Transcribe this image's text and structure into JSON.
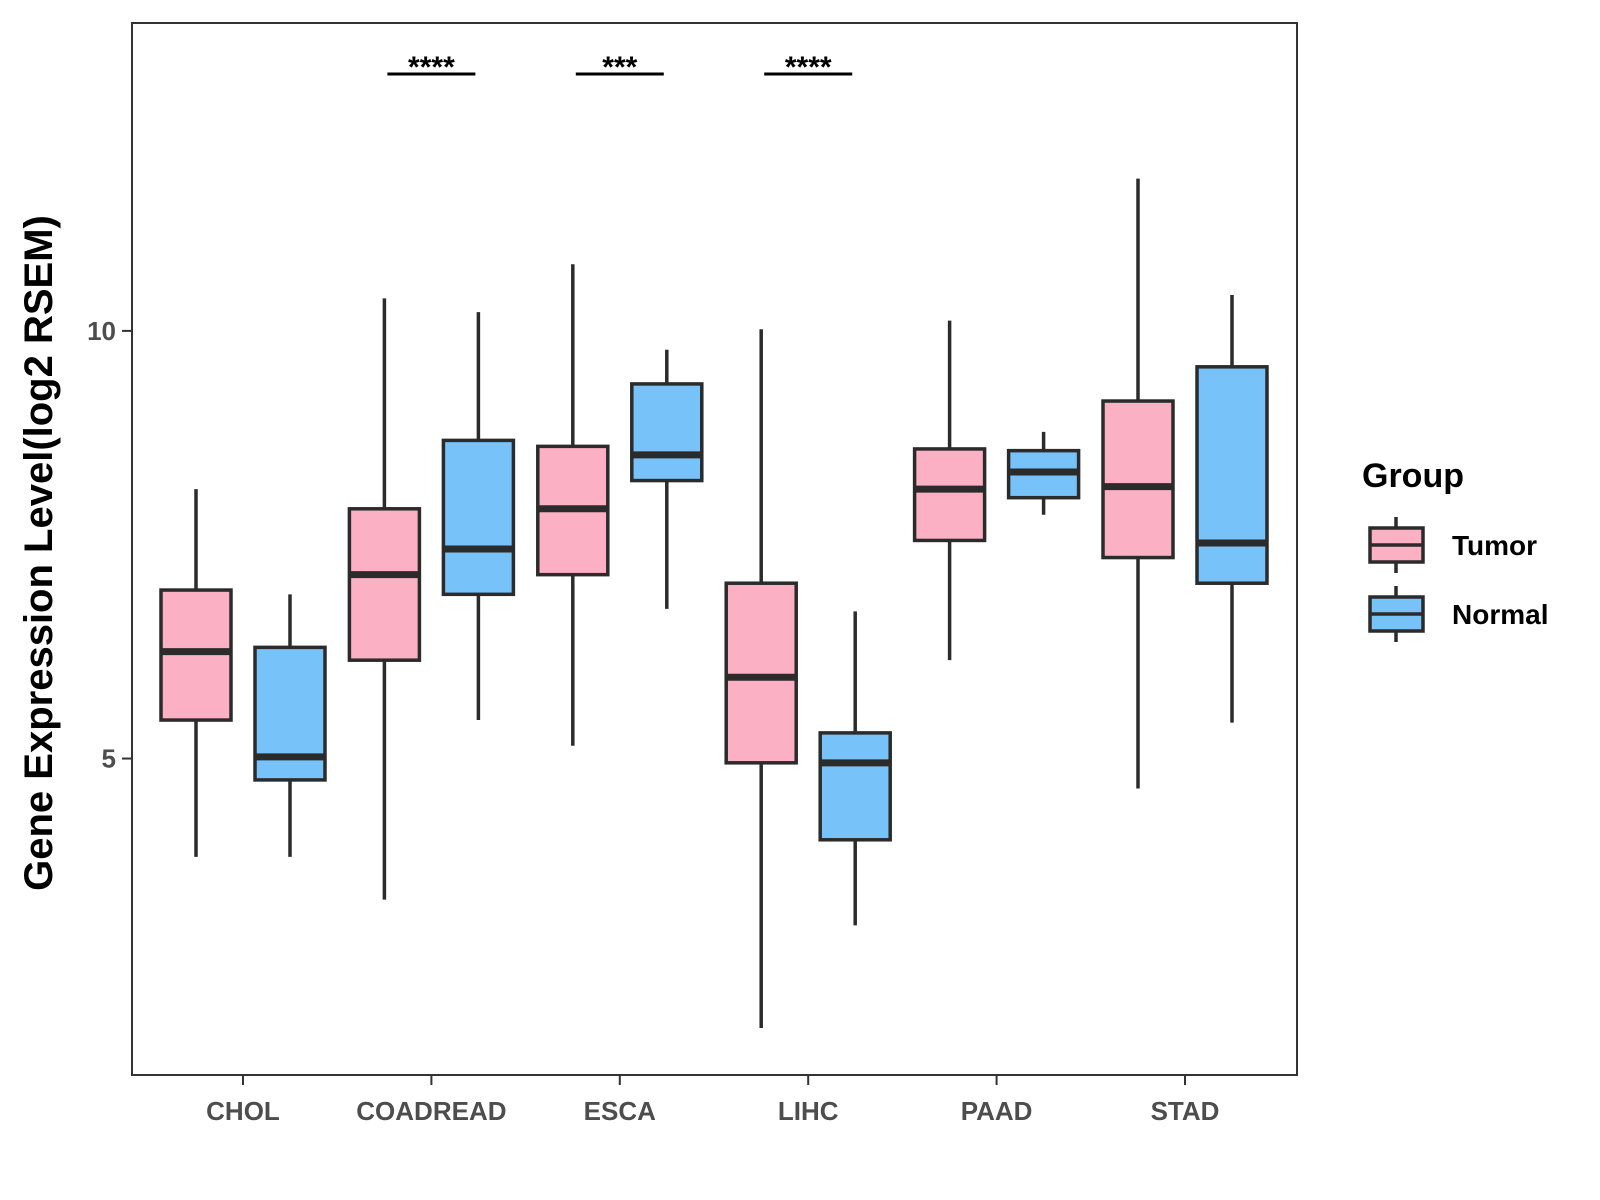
{
  "chart_data": {
    "type": "box",
    "title": "",
    "xlabel": "",
    "ylabel": "Gene Expression Level(log2 RSEM)",
    "ylim": [
      1.3,
      13.6
    ],
    "yticks": [
      5,
      10
    ],
    "categories": [
      "CHOL",
      "COADREAD",
      "ESCA",
      "LIHC",
      "PAAD",
      "STAD"
    ],
    "legend": {
      "title": "Group",
      "position": "right"
    },
    "series": [
      {
        "name": "Tumor",
        "color": "#FBB1C3",
        "boxes": [
          {
            "whisker_low": 3.85,
            "q1": 5.45,
            "median": 6.25,
            "q3": 6.97,
            "whisker_high": 8.15
          },
          {
            "whisker_low": 3.35,
            "q1": 6.15,
            "median": 7.15,
            "q3": 7.92,
            "whisker_high": 10.38
          },
          {
            "whisker_low": 5.15,
            "q1": 7.15,
            "median": 7.92,
            "q3": 8.65,
            "whisker_high": 10.78
          },
          {
            "whisker_low": 1.85,
            "q1": 4.95,
            "median": 5.95,
            "q3": 7.05,
            "whisker_high": 10.02
          },
          {
            "whisker_low": 6.15,
            "q1": 7.55,
            "median": 8.15,
            "q3": 8.62,
            "whisker_high": 10.12
          },
          {
            "whisker_low": 4.65,
            "q1": 7.35,
            "median": 8.18,
            "q3": 9.18,
            "whisker_high": 11.78
          }
        ]
      },
      {
        "name": "Normal",
        "color": "#77C2F8",
        "boxes": [
          {
            "whisker_low": 3.85,
            "q1": 4.75,
            "median": 5.02,
            "q3": 6.3,
            "whisker_high": 6.92
          },
          {
            "whisker_low": 5.45,
            "q1": 6.92,
            "median": 7.45,
            "q3": 8.72,
            "whisker_high": 10.22
          },
          {
            "whisker_low": 6.75,
            "q1": 8.25,
            "median": 8.55,
            "q3": 9.38,
            "whisker_high": 9.78
          },
          {
            "whisker_low": 3.05,
            "q1": 4.05,
            "median": 4.95,
            "q3": 5.3,
            "whisker_high": 6.72
          },
          {
            "whisker_low": 7.85,
            "q1": 8.05,
            "median": 8.35,
            "q3": 8.6,
            "whisker_high": 8.82
          },
          {
            "whisker_low": 5.42,
            "q1": 7.05,
            "median": 7.52,
            "q3": 9.58,
            "whisker_high": 10.42
          }
        ]
      }
    ],
    "annotations": [
      {
        "category": "COADREAD",
        "label": "****"
      },
      {
        "category": "ESCA",
        "label": "***"
      },
      {
        "category": "LIHC",
        "label": "****"
      }
    ]
  }
}
